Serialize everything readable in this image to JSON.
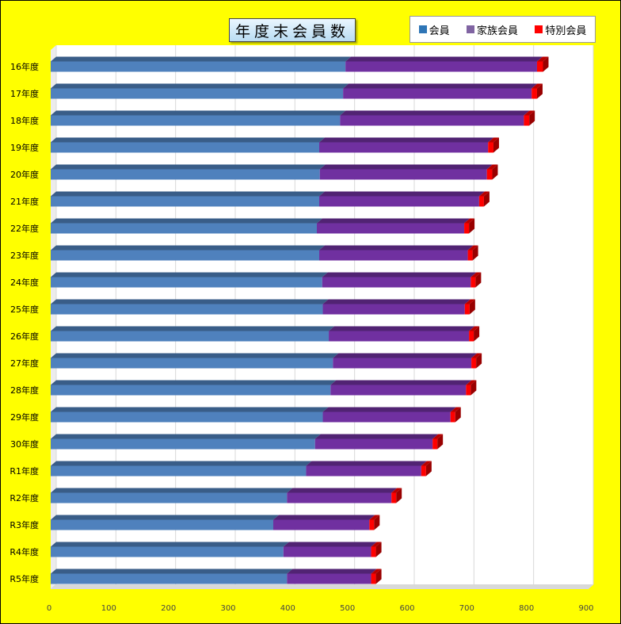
{
  "chart_data": {
    "type": "bar",
    "orientation": "horizontal",
    "stacked": true,
    "title": "年度末会員数",
    "categories": [
      "16年度",
      "17年度",
      "18年度",
      "19年度",
      "20年度",
      "21年度",
      "22年度",
      "23年度",
      "24年度",
      "25年度",
      "26年度",
      "27年度",
      "28年度",
      "29年度",
      "30年度",
      "R1年度",
      "R2年度",
      "R3年度",
      "R4年度",
      "R5年度"
    ],
    "series": [
      {
        "name": "会員",
        "color": "#4f81bd",
        "values": [
          494,
          490,
          485,
          450,
          451,
          450,
          446,
          450,
          455,
          456,
          466,
          473,
          469,
          456,
          443,
          428,
          396,
          373,
          390,
          396
        ]
      },
      {
        "name": "家族会員",
        "color": "#7030a0",
        "values": [
          321,
          316,
          308,
          283,
          280,
          268,
          247,
          249,
          249,
          238,
          235,
          232,
          227,
          214,
          197,
          193,
          175,
          161,
          147,
          141
        ]
      },
      {
        "name": "特別会員",
        "color": "#ff0000",
        "values": [
          10,
          9,
          9,
          9,
          9,
          8,
          8,
          8,
          8,
          8,
          8,
          8,
          8,
          8,
          8,
          8,
          8,
          8,
          8,
          8
        ]
      }
    ],
    "xlim": [
      0,
      900
    ],
    "xticks": [
      "0",
      "100",
      "200",
      "300",
      "400",
      "500",
      "600",
      "700",
      "800",
      "900"
    ],
    "grid": true,
    "legend_position": "top-right"
  }
}
